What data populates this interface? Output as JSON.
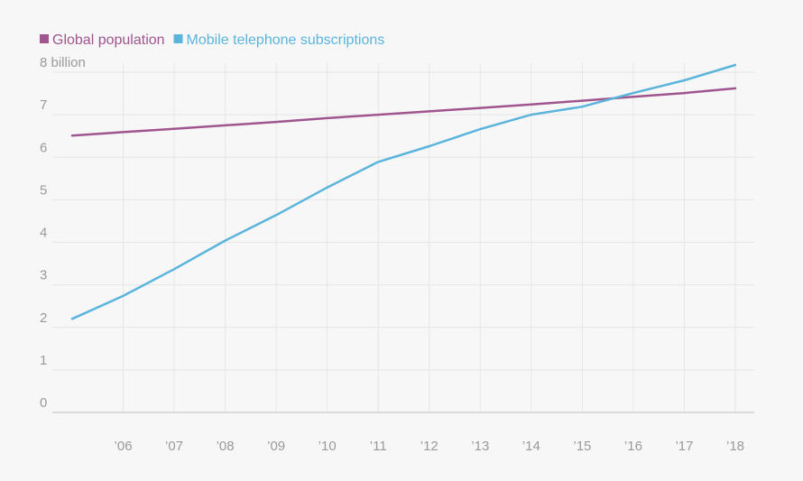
{
  "chart_data": {
    "type": "line",
    "x": [
      2005,
      2006,
      2007,
      2008,
      2009,
      2010,
      2011,
      2012,
      2013,
      2014,
      2015,
      2016,
      2017,
      2018
    ],
    "xticks": [
      2006,
      2007,
      2008,
      2009,
      2010,
      2011,
      2012,
      2013,
      2014,
      2015,
      2016,
      2017,
      2018
    ],
    "xtick_labels": [
      "’06",
      "’07",
      "’08",
      "’09",
      "’10",
      "’11",
      "’12",
      "’13",
      "’14",
      "’15",
      "’16",
      "’17",
      "’18"
    ],
    "ylim": [
      0,
      8
    ],
    "yticks": [
      0,
      1,
      2,
      3,
      4,
      5,
      6,
      7,
      8
    ],
    "ytick_labels": [
      "0",
      "1",
      "2",
      "3",
      "4",
      "5",
      "6",
      "7",
      "8 billion"
    ],
    "grid": true,
    "legend": "top-left",
    "series": [
      {
        "name": "Global population",
        "color": "#a0558f",
        "values": [
          6.51,
          6.59,
          6.67,
          6.75,
          6.83,
          6.92,
          7.0,
          7.08,
          7.16,
          7.24,
          7.33,
          7.42,
          7.51,
          7.62
        ]
      },
      {
        "name": "Mobile telephone subscriptions",
        "color": "#5bb4dc",
        "values": [
          2.2,
          2.74,
          3.37,
          4.04,
          4.64,
          5.29,
          5.89,
          6.26,
          6.66,
          7.0,
          7.19,
          7.51,
          7.81,
          8.17
        ]
      }
    ]
  }
}
